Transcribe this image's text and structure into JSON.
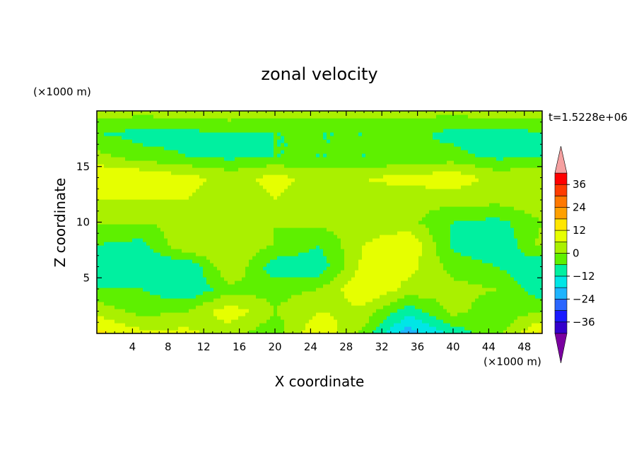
{
  "chart_data": {
    "type": "heatmap",
    "title": "zonal velocity",
    "xlabel": "X coordinate",
    "ylabel": "Z coordinate",
    "x_unit": "(×1000 m)",
    "y_unit": "(×1000 m)",
    "time_label": "t=1.5228e+06",
    "xlim": [
      0,
      50
    ],
    "ylim": [
      0,
      20
    ],
    "x_ticks": [
      4,
      8,
      12,
      16,
      20,
      24,
      28,
      32,
      36,
      40,
      44,
      48
    ],
    "x_tick_labels": [
      "4",
      "8",
      "12",
      "16",
      "20",
      "24",
      "28",
      "32",
      "36",
      "40",
      "44",
      "48"
    ],
    "y_ticks": [
      5,
      10,
      15
    ],
    "y_tick_labels": [
      "5",
      "10",
      "15"
    ],
    "colorbar": {
      "levels": [
        -42,
        -36,
        -30,
        -24,
        -18,
        -12,
        -6,
        0,
        6,
        12,
        18,
        24,
        30,
        36,
        42
      ],
      "tick_values": [
        36,
        24,
        12,
        0,
        -12,
        -24,
        -36
      ],
      "tick_labels": [
        "36",
        "24",
        "12",
        "0",
        "−12",
        "−24",
        "−36"
      ],
      "extend": "both",
      "colors_low_to_high": [
        "#7a00a0",
        "#3300cc",
        "#1a1aff",
        "#2a66ff",
        "#1eb4ff",
        "#00e6e6",
        "#00f0a0",
        "#5ef000",
        "#aaf000",
        "#e6ff00",
        "#ffe600",
        "#ffa000",
        "#ff7800",
        "#ff3c00",
        "#ff0000",
        "#f5a0a0"
      ]
    },
    "field_grid": {
      "x": [
        0,
        5,
        10,
        15,
        20,
        25,
        30,
        35,
        40,
        45,
        50
      ],
      "z": [
        0,
        2,
        4,
        6,
        8,
        10,
        12,
        14,
        16,
        18,
        20
      ],
      "u": [
        [
          14,
          8,
          8,
          2,
          -4,
          12,
          -2,
          -22,
          -10,
          -2,
          14
        ],
        [
          4,
          -2,
          0,
          10,
          0,
          6,
          4,
          -10,
          2,
          -4,
          0
        ],
        [
          -6,
          -6,
          -12,
          -2,
          -2,
          0,
          12,
          4,
          2,
          0,
          -10
        ],
        [
          -10,
          -10,
          -12,
          6,
          -10,
          -10,
          8,
          8,
          -2,
          -6,
          -12
        ],
        [
          -6,
          -8,
          6,
          6,
          0,
          -6,
          6,
          12,
          -8,
          -12,
          2
        ],
        [
          0,
          0,
          2,
          2,
          0,
          2,
          2,
          2,
          -6,
          -8,
          0
        ],
        [
          6,
          6,
          6,
          2,
          6,
          2,
          4,
          2,
          2,
          2,
          4
        ],
        [
          12,
          12,
          8,
          4,
          8,
          4,
          6,
          8,
          10,
          4,
          6
        ],
        [
          2,
          -4,
          -6,
          -8,
          -6,
          -6,
          -6,
          -6,
          -4,
          -8,
          -6
        ],
        [
          -6,
          -8,
          -8,
          -6,
          -6,
          -6,
          -6,
          -4,
          -8,
          -10,
          -6
        ],
        [
          4,
          2,
          4,
          4,
          2,
          4,
          2,
          2,
          2,
          4,
          2
        ]
      ]
    }
  }
}
